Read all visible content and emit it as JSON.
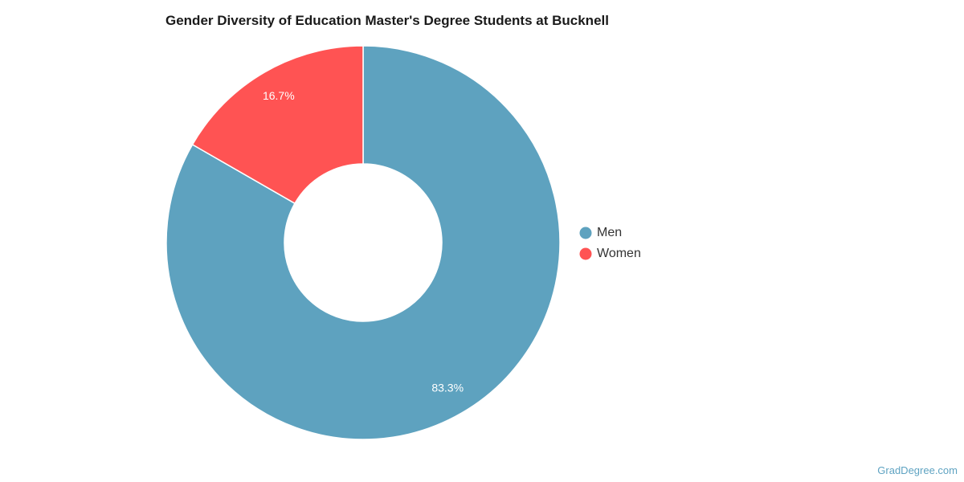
{
  "chart_data": {
    "type": "pie",
    "title": "Gender Diversity of Education Master's Degree Students at Bucknell",
    "categories": [
      "Men",
      "Women"
    ],
    "values": [
      83.3,
      16.7
    ],
    "value_labels": [
      "83.3%",
      "16.7%"
    ],
    "colors": [
      "#5ea2bf",
      "#ff5353"
    ],
    "donut": true,
    "legend_position": "right"
  },
  "source": "GradDegree.com"
}
